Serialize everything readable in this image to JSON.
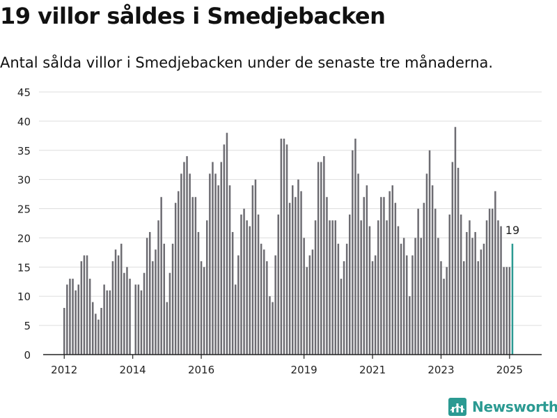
{
  "header": {
    "title": "19 villor såldes i Smedjebacken",
    "subtitle": "Antal sålda villor i Smedjebacken under de senaste tre månaderna."
  },
  "brand": {
    "label": "Newsworthy"
  },
  "colors": {
    "bar": "#6d6c72",
    "highlight": "#2b9a92",
    "grid": "#dddddd",
    "axis": "#222222",
    "text": "#222222"
  },
  "chart_data": {
    "type": "bar",
    "title": "19 villor såldes i Smedjebacken",
    "subtitle": "Antal sålda villor i Smedjebacken under de senaste tre månaderna.",
    "xlabel": "",
    "ylabel": "",
    "ylim": [
      0,
      45
    ],
    "y_ticks": [
      0,
      5,
      10,
      15,
      20,
      25,
      30,
      35,
      40,
      45
    ],
    "x_ticks": [
      "2012",
      "2014",
      "2016",
      "2019",
      "2021",
      "2023",
      "2025"
    ],
    "grid": true,
    "legend": "none",
    "start": "2012-01",
    "frequency": "monthly",
    "values": [
      8,
      12,
      13,
      13,
      11,
      12,
      16,
      17,
      17,
      13,
      9,
      7,
      6,
      8,
      12,
      11,
      11,
      16,
      18,
      17,
      19,
      14,
      15,
      13,
      0,
      12,
      12,
      11,
      14,
      20,
      21,
      16,
      18,
      23,
      27,
      19,
      9,
      14,
      19,
      26,
      28,
      31,
      33,
      34,
      31,
      27,
      27,
      21,
      16,
      15,
      23,
      31,
      33,
      31,
      29,
      33,
      36,
      38,
      29,
      21,
      12,
      17,
      24,
      25,
      23,
      22,
      29,
      30,
      24,
      19,
      18,
      16,
      10,
      9,
      17,
      24,
      37,
      37,
      36,
      26,
      29,
      27,
      30,
      28,
      20,
      15,
      17,
      18,
      23,
      33,
      33,
      34,
      27,
      23,
      23,
      23,
      19,
      13,
      16,
      19,
      24,
      35,
      37,
      31,
      23,
      27,
      29,
      22,
      16,
      17,
      23,
      27,
      27,
      23,
      28,
      29,
      26,
      22,
      19,
      20,
      17,
      10,
      17,
      20,
      25,
      20,
      26,
      31,
      35,
      29,
      25,
      20,
      16,
      13,
      15,
      24,
      33,
      39,
      32,
      24,
      16,
      21,
      23,
      20,
      21,
      16,
      18,
      19,
      23,
      25,
      25,
      28,
      23,
      22,
      15,
      15,
      15,
      19
    ],
    "highlight": {
      "index": 157,
      "label": "19"
    }
  }
}
